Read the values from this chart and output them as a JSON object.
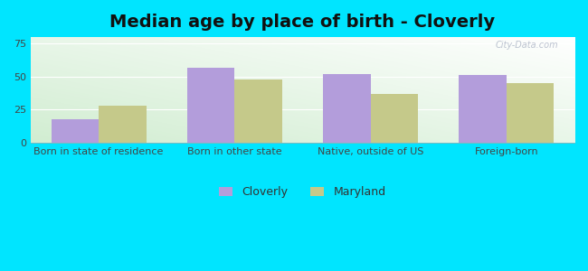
{
  "title": "Median age by place of birth - Cloverly",
  "categories": [
    "Born in state of residence",
    "Born in other state",
    "Native, outside of US",
    "Foreign-born"
  ],
  "cloverly_values": [
    18,
    57,
    52,
    51
  ],
  "maryland_values": [
    28,
    48,
    37,
    45
  ],
  "cloverly_color": "#b39ddb",
  "maryland_color": "#c5c98a",
  "ylim": [
    0,
    80
  ],
  "yticks": [
    0,
    25,
    50,
    75
  ],
  "legend_labels": [
    "Cloverly",
    "Maryland"
  ],
  "figure_bg": "#00e5ff",
  "bar_width": 0.35,
  "title_fontsize": 14,
  "tick_fontsize": 8,
  "legend_fontsize": 9,
  "watermark": "City-Data.com"
}
